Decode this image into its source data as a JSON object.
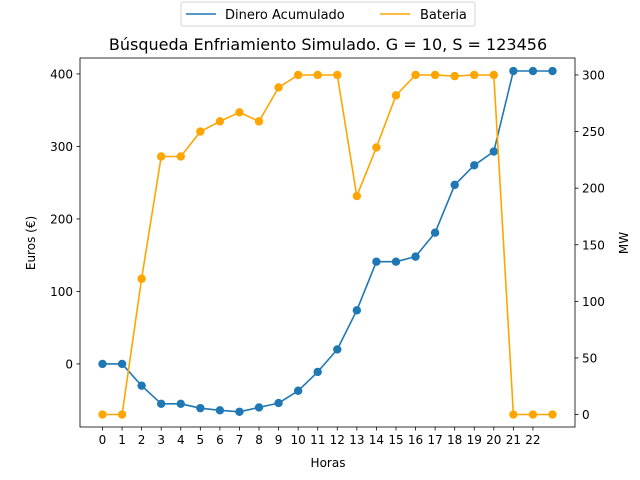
{
  "chart_data": {
    "type": "line",
    "title": "Búsqueda Enfriamiento Simulado. G = 10, S = 123456",
    "xlabel": "Horas",
    "ylabel_left": "Euros (€)",
    "ylabel_right": "MW",
    "legend_position": "top-center (above plot)",
    "grid": false,
    "x_tick_labels": [
      "0",
      "1",
      "2",
      "3",
      "4",
      "5",
      "6",
      "7",
      "8",
      "9",
      "10",
      "11",
      "12",
      "13",
      "14",
      "15",
      "16",
      "17",
      "18",
      "19",
      "20",
      "21",
      "22"
    ],
    "y_left_ticks": [
      0,
      100,
      200,
      300,
      400
    ],
    "y_right_ticks": [
      0,
      50,
      100,
      150,
      200,
      250,
      300
    ],
    "y_left_lim": [
      -87,
      422
    ],
    "y_right_lim": [
      -11,
      315
    ],
    "x_lim": [
      -1.15,
      24.15
    ],
    "series": [
      {
        "name": "Dinero Acumulado",
        "axis": "left",
        "color": "#1f77b4",
        "x": [
          0,
          1,
          2,
          3,
          4,
          5,
          6,
          7,
          8,
          9,
          10,
          11,
          12,
          13,
          14,
          15,
          16,
          17,
          18,
          19,
          20,
          21,
          22,
          23
        ],
        "y": [
          0,
          0,
          -30,
          -55,
          -55,
          -61,
          -64,
          -66,
          -60,
          -54,
          -37,
          -11,
          20,
          74,
          141,
          141,
          148,
          181,
          247,
          274,
          293,
          404,
          404,
          404
        ]
      },
      {
        "name": "Bateria",
        "axis": "right",
        "color": "#ffa500",
        "x": [
          0,
          1,
          2,
          3,
          4,
          5,
          6,
          7,
          8,
          9,
          10,
          11,
          12,
          13,
          14,
          15,
          16,
          17,
          18,
          19,
          20,
          21,
          22,
          23
        ],
        "y": [
          0,
          0,
          120,
          228,
          228,
          250,
          259,
          267,
          259,
          289,
          300,
          300,
          300,
          193,
          236,
          282,
          300,
          300,
          299,
          300,
          300,
          0,
          0,
          0
        ]
      }
    ]
  }
}
